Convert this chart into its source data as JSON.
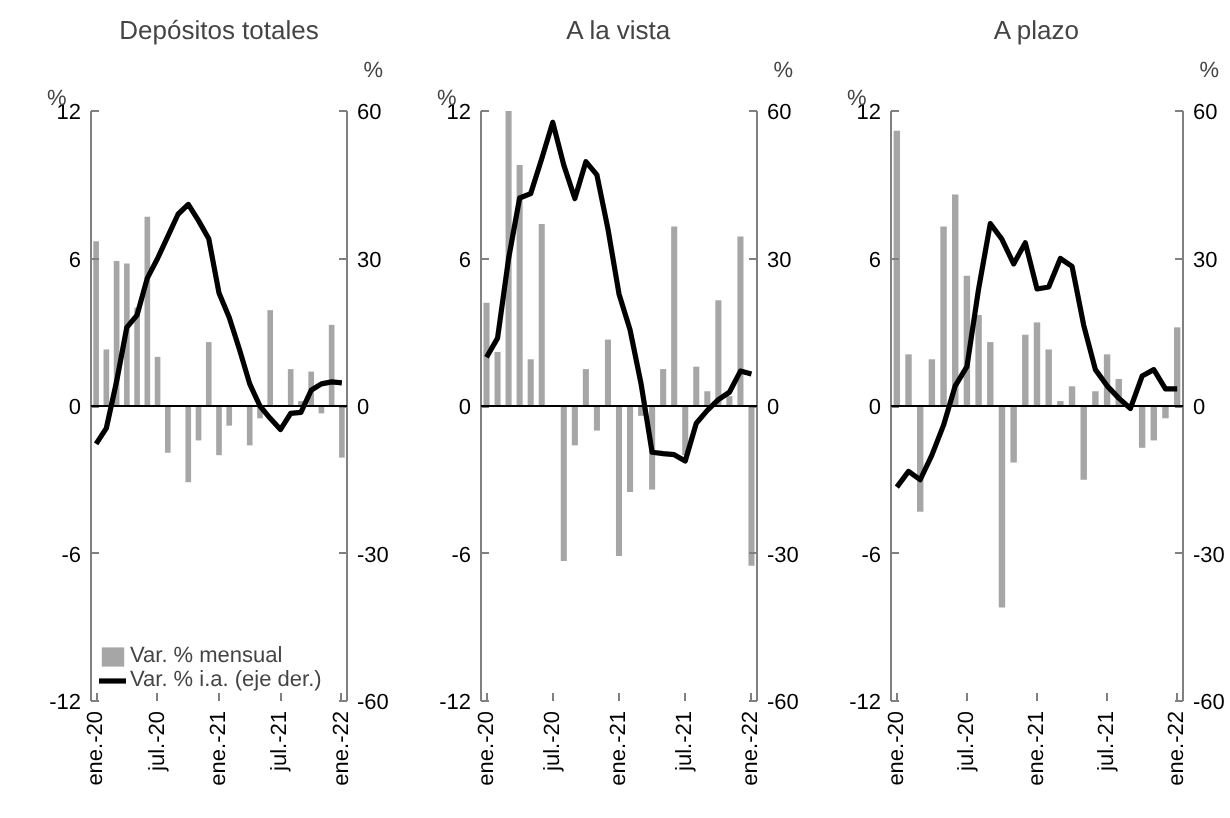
{
  "chart_data": [
    {
      "type": "bar",
      "title": "Depósitos totales",
      "ylabel": "%",
      "y2label": "%",
      "categories": [
        "ene.-20",
        null,
        null,
        null,
        null,
        null,
        "jul.-20",
        null,
        null,
        null,
        null,
        null,
        "ene.-21",
        null,
        null,
        null,
        null,
        null,
        "jul.-21",
        null,
        null,
        null,
        null,
        null,
        "ene.-22"
      ],
      "series": [
        {
          "name": "Var. % mensual",
          "color": "#a6a6a6",
          "values": [
            6.7,
            2.3,
            5.9,
            5.8,
            4.0,
            7.7,
            2.0,
            -1.9,
            null,
            -3.1,
            -1.4,
            2.6,
            -2.0,
            -0.8,
            null,
            -1.6,
            -0.5,
            3.9,
            null,
            1.5,
            0.2,
            1.4,
            -0.3,
            3.3,
            -2.1
          ]
        },
        {
          "name": "Var. % i.a. (eje der.)",
          "type": "line",
          "axis": "y2",
          "color": "#000000",
          "values": [
            -7.7,
            -4.5,
            5,
            16,
            18.5,
            26,
            30,
            34.5,
            39,
            41,
            37.7,
            34,
            23,
            18,
            11.5,
            4.5,
            0,
            -2.5,
            -4.8,
            -1.5,
            -1.3,
            3.2,
            4.5,
            4.9,
            4.7
          ]
        }
      ],
      "ylim": [
        -12,
        12
      ],
      "yticks": [
        -12,
        -6,
        0,
        6,
        12
      ],
      "y2lim": [
        -60,
        60
      ],
      "y2ticks": [
        -60,
        -30,
        0,
        30,
        60
      ],
      "ref_lines": [
        {
          "axis": "y",
          "value": 0,
          "color": "#000000"
        }
      ],
      "grid": false,
      "legend": "bottom left",
      "line_style": "solid",
      "marker": "none"
    },
    {
      "type": "bar",
      "title": "A la vista",
      "ylabel": "%",
      "y2label": "%",
      "categories": [
        "ene.-20",
        null,
        null,
        null,
        null,
        null,
        "jul.-20",
        null,
        null,
        null,
        null,
        null,
        "ene.-21",
        null,
        null,
        null,
        null,
        null,
        "jul.-21",
        null,
        null,
        null,
        null,
        null,
        "ene.-22"
      ],
      "series": [
        {
          "color": "#a6a6a6",
          "values": [
            4.2,
            2.2,
            12,
            9.8,
            1.9,
            7.4,
            0,
            -6.3,
            -1.6,
            1.5,
            -1.0,
            2.7,
            -6.1,
            -3.5,
            -0.4,
            -3.4,
            1.5,
            7.3,
            -2.0,
            1.6,
            0.6,
            4.3,
            0.4,
            6.9,
            -6.5
          ]
        },
        {
          "type": "line",
          "axis": "y2",
          "color": "#000000",
          "values": [
            9.9,
            13.8,
            30,
            42.3,
            43.2,
            50.3,
            57.7,
            49,
            42.2,
            49.7,
            47,
            36,
            22.8,
            15.5,
            4.5,
            -9.4,
            -9.7,
            -9.9,
            -11.2,
            -3.5,
            -0.9,
            1.3,
            2.8,
            7.1,
            6.5
          ]
        }
      ],
      "ylim": [
        -12,
        12
      ],
      "yticks": [
        -12,
        -6,
        0,
        6,
        12
      ],
      "y2lim": [
        -60,
        60
      ],
      "y2ticks": [
        -60,
        -30,
        0,
        30,
        60
      ],
      "ref_lines": [
        {
          "axis": "y",
          "value": 0,
          "color": "#000000"
        }
      ],
      "grid": false,
      "line_style": "solid",
      "marker": "none"
    },
    {
      "type": "bar",
      "title": "A plazo",
      "ylabel": "%",
      "y2label": "%",
      "categories": [
        "ene.-20",
        null,
        null,
        null,
        null,
        null,
        "jul.-20",
        null,
        null,
        null,
        null,
        null,
        "ene.-21",
        null,
        null,
        null,
        null,
        null,
        "jul.-21",
        null,
        null,
        null,
        null,
        null,
        "ene.-22"
      ],
      "series": [
        {
          "color": "#a6a6a6",
          "values": [
            11.2,
            2.1,
            -4.3,
            1.9,
            7.3,
            8.6,
            5.3,
            3.7,
            2.6,
            -8.2,
            -2.3,
            2.9,
            3.4,
            2.3,
            0.2,
            0.8,
            -3.0,
            0.6,
            2.1,
            1.1,
            0,
            -1.7,
            -1.4,
            -0.5,
            3.2
          ]
        },
        {
          "type": "line",
          "axis": "y2",
          "color": "#000000",
          "values": [
            -16.5,
            -13.3,
            -15,
            -10,
            -3.9,
            4.1,
            8,
            23.8,
            37.1,
            33.9,
            28.9,
            33.2,
            23.8,
            24.2,
            30,
            28.4,
            16.4,
            7.4,
            4.1,
            1.6,
            -0.5,
            6.1,
            7.4,
            3.5,
            3.5
          ]
        }
      ],
      "ylim": [
        -12,
        12
      ],
      "yticks": [
        -12,
        -6,
        0,
        6,
        12
      ],
      "y2lim": [
        -60,
        60
      ],
      "y2ticks": [
        -60,
        -30,
        0,
        30,
        60
      ],
      "ref_lines": [
        {
          "axis": "y",
          "value": 0,
          "color": "#000000"
        }
      ],
      "grid": false,
      "line_style": "solid",
      "marker": "none"
    }
  ]
}
